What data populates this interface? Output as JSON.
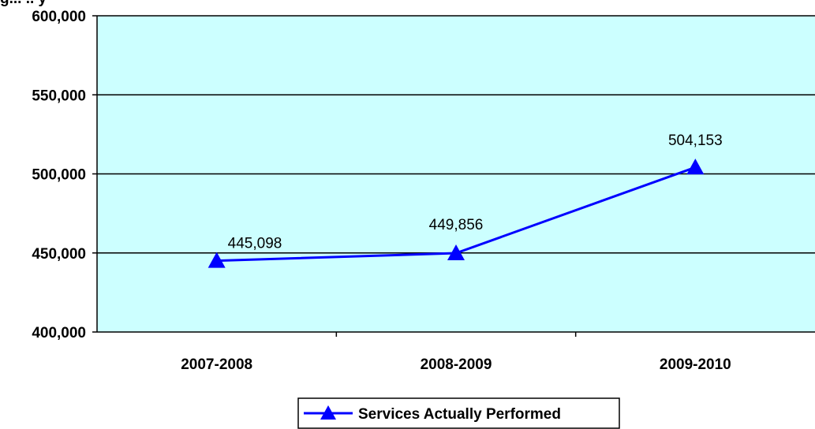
{
  "top_fragment": "g... .. y",
  "chart_data": {
    "type": "line",
    "title": "",
    "xlabel": "",
    "ylabel": "",
    "categories": [
      "2007-2008",
      "2008-2009",
      "2009-2010"
    ],
    "series": [
      {
        "name": "Services Actually Performed",
        "values": [
          445098,
          449856,
          504153
        ],
        "labels": [
          "445,098",
          "449,856",
          "504,153"
        ],
        "color": "#0000ff",
        "marker": "triangle"
      }
    ],
    "ylim": [
      400000,
      600000
    ],
    "yticks": [
      400000,
      450000,
      500000,
      550000,
      600000
    ],
    "ytick_labels": [
      "400,000",
      "450,000",
      "500,000",
      "550,000",
      "600,000"
    ],
    "plot_background": "#ccffff",
    "grid": true,
    "legend_position": "bottom-center"
  }
}
